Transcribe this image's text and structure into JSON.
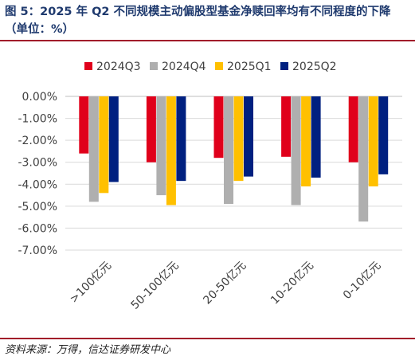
{
  "figure": {
    "title": "图 5：2025 年 Q2 不同规模主动偏股型基金净赎回率均有不同程度的下降（单位：%）",
    "source": "资料来源：万得，信达证券研发中心"
  },
  "colors": {
    "rule": "#a21d2a",
    "title": "#1f3a6e",
    "gridline": "#d9d9d9"
  },
  "chart_data": {
    "type": "bar",
    "title": "",
    "xlabel": "",
    "ylabel": "",
    "ylim": [
      -7,
      0
    ],
    "y_ticks": [
      0,
      -1,
      -2,
      -3,
      -4,
      -5,
      -6,
      -7
    ],
    "y_tick_labels": [
      "0.00%",
      "-1.00%",
      "-2.00%",
      "-3.00%",
      "-4.00%",
      "-5.00%",
      "-6.00%",
      "-7.00%"
    ],
    "grid": true,
    "legend_position": "top",
    "categories": [
      ">100亿元",
      "50-100亿元",
      "20-50亿元",
      "10-20亿元",
      "0-10亿元"
    ],
    "series": [
      {
        "name": "2024Q3",
        "color": "#e0001b",
        "values": [
          -2.6,
          -3.0,
          -2.8,
          -2.75,
          -3.0
        ]
      },
      {
        "name": "2024Q4",
        "color": "#afafaf",
        "values": [
          -4.8,
          -4.5,
          -4.9,
          -4.95,
          -5.7
        ]
      },
      {
        "name": "2025Q1",
        "color": "#ffc000",
        "values": [
          -4.4,
          -4.95,
          -3.85,
          -4.1,
          -4.1
        ]
      },
      {
        "name": "2025Q2",
        "color": "#002080",
        "values": [
          -3.9,
          -3.85,
          -3.65,
          -3.7,
          -3.55
        ]
      }
    ]
  }
}
